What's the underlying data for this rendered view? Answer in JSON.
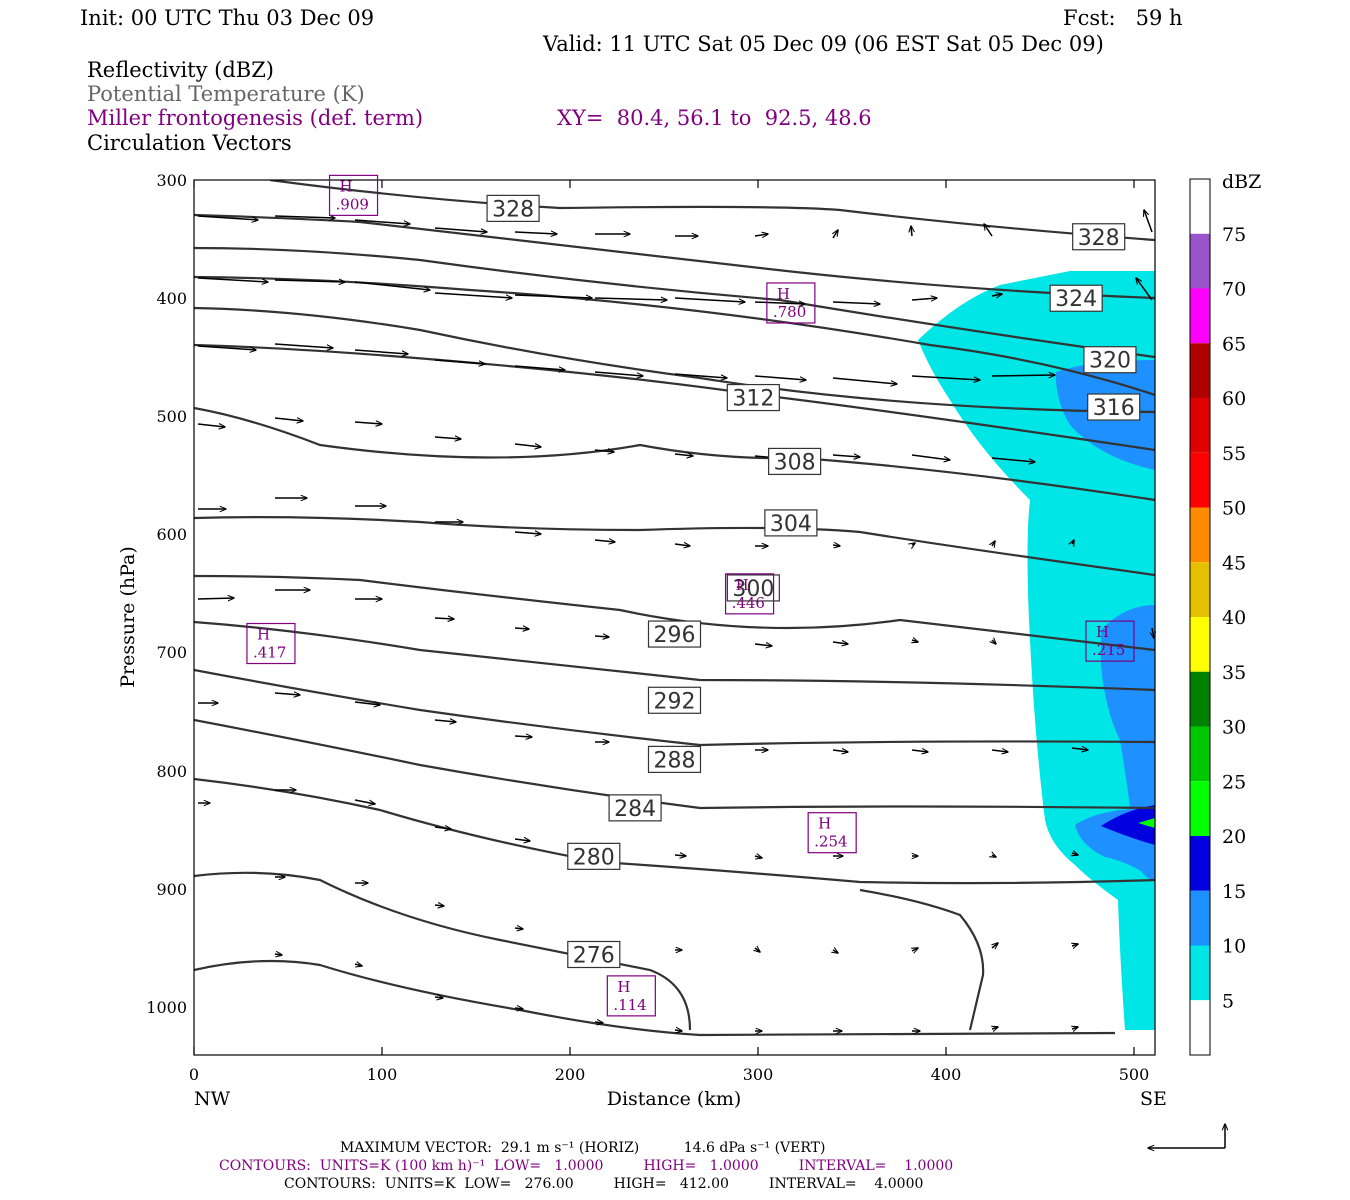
{
  "header": {
    "init": "Init: 00 UTC Thu 03 Dec 09",
    "fcst": "Fcst:   59 h",
    "valid": "Valid: 11 UTC Sat 05 Dec 09 (06 EST Sat 05 Dec 09)",
    "field1": "Reflectivity (dBZ)",
    "field2": "Potential Temperature (K)",
    "field3": "Miller frontogenesis (def. term)",
    "xy": "XY=  80.4, 56.1 to  92.5, 48.6",
    "field4": "Circulation Vectors"
  },
  "chart_data": {
    "type": "cross-section",
    "xlabel": "Distance (km)",
    "ylabel": "Pressure (hPa)",
    "xlim": [
      0,
      512
    ],
    "ylim": [
      1040,
      300
    ],
    "x_ticks": [
      "0",
      "100",
      "200",
      "300",
      "400",
      "500"
    ],
    "y_ticks": [
      "300",
      "400",
      "500",
      "600",
      "700",
      "800",
      "900",
      "1000"
    ],
    "x_end_labels": {
      "left": "NW",
      "right": "SE"
    },
    "colorbar": {
      "title": "dBZ",
      "labels": [
        "5",
        "10",
        "15",
        "20",
        "25",
        "30",
        "35",
        "40",
        "45",
        "50",
        "55",
        "60",
        "65",
        "70",
        "75"
      ],
      "colors": [
        "#00e5e5",
        "#1e90ff",
        "#0000e0",
        "#00ff00",
        "#00c800",
        "#008000",
        "#ffff00",
        "#e5c000",
        "#ff8c00",
        "#ff0000",
        "#e00000",
        "#b00000",
        "#ff00ff",
        "#9955cc",
        "#ffffff"
      ]
    },
    "theta_labels": [
      {
        "label": "328",
        "x": 170,
        "p": 324
      },
      {
        "label": "328",
        "x": 482,
        "p": 348
      },
      {
        "label": "324",
        "x": 470,
        "p": 400
      },
      {
        "label": "320",
        "x": 488,
        "p": 452
      },
      {
        "label": "316",
        "x": 490,
        "p": 492
      },
      {
        "label": "312",
        "x": 298,
        "p": 484
      },
      {
        "label": "308",
        "x": 320,
        "p": 538
      },
      {
        "label": "304",
        "x": 318,
        "p": 590
      },
      {
        "label": "300",
        "x": 298,
        "p": 645
      },
      {
        "label": "296",
        "x": 256,
        "p": 684
      },
      {
        "label": "292",
        "x": 256,
        "p": 740
      },
      {
        "label": "288",
        "x": 256,
        "p": 790
      },
      {
        "label": "284",
        "x": 235,
        "p": 831
      },
      {
        "label": "280",
        "x": 213,
        "p": 872
      },
      {
        "label": "276",
        "x": 213,
        "p": 955
      }
    ],
    "frontogenesis_maxima": [
      {
        "label": "H",
        "value": ".909",
        "x": 85,
        "p": 313
      },
      {
        "label": "H",
        "value": ".780",
        "x": 318,
        "p": 404
      },
      {
        "label": "H",
        "value": ".446",
        "x": 296,
        "p": 650
      },
      {
        "label": "H",
        "value": ".417",
        "x": 41,
        "p": 692
      },
      {
        "label": "H",
        "value": ".215",
        "x": 488,
        "p": 690
      },
      {
        "label": "H",
        "value": ".254",
        "x": 340,
        "p": 852
      },
      {
        "label": "H",
        "value": ".114",
        "x": 233,
        "p": 990
      }
    ]
  },
  "footer": {
    "max_vector": "MAXIMUM VECTOR:  29.1 m s⁻¹ (HORIZ)          14.6 dPa s⁻¹ (VERT)",
    "contours1": "CONTOURS:  UNITS=K (100 km h)⁻¹  LOW=   1.0000         HIGH=   1.0000         INTERVAL=    1.0000",
    "contours2": "CONTOURS:  UNITS=K  LOW=   276.00         HIGH=   412.00         INTERVAL=    4.0000"
  }
}
